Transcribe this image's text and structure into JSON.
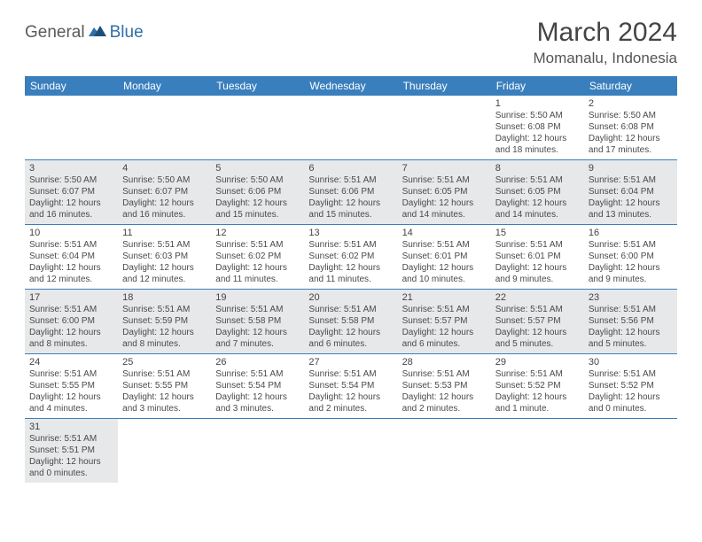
{
  "logo": {
    "part_a": "General",
    "part_b": "Blue"
  },
  "title": "March 2024",
  "location": "Momanalu, Indonesia",
  "colors": {
    "header_bg": "#3a7fbd",
    "header_text": "#ffffff",
    "shaded_bg": "#e7e8e9",
    "border": "#3a7fbd",
    "logo_a": "#5a5a5a",
    "logo_b": "#2f6fa8"
  },
  "day_headers": [
    "Sunday",
    "Monday",
    "Tuesday",
    "Wednesday",
    "Thursday",
    "Friday",
    "Saturday"
  ],
  "weeks": [
    [
      null,
      null,
      null,
      null,
      null,
      {
        "n": "1",
        "sr": "5:50 AM",
        "ss": "6:08 PM",
        "dl": "12 hours and 18 minutes."
      },
      {
        "n": "2",
        "sr": "5:50 AM",
        "ss": "6:08 PM",
        "dl": "12 hours and 17 minutes."
      }
    ],
    [
      {
        "n": "3",
        "sr": "5:50 AM",
        "ss": "6:07 PM",
        "dl": "12 hours and 16 minutes."
      },
      {
        "n": "4",
        "sr": "5:50 AM",
        "ss": "6:07 PM",
        "dl": "12 hours and 16 minutes."
      },
      {
        "n": "5",
        "sr": "5:50 AM",
        "ss": "6:06 PM",
        "dl": "12 hours and 15 minutes."
      },
      {
        "n": "6",
        "sr": "5:51 AM",
        "ss": "6:06 PM",
        "dl": "12 hours and 15 minutes."
      },
      {
        "n": "7",
        "sr": "5:51 AM",
        "ss": "6:05 PM",
        "dl": "12 hours and 14 minutes."
      },
      {
        "n": "8",
        "sr": "5:51 AM",
        "ss": "6:05 PM",
        "dl": "12 hours and 14 minutes."
      },
      {
        "n": "9",
        "sr": "5:51 AM",
        "ss": "6:04 PM",
        "dl": "12 hours and 13 minutes."
      }
    ],
    [
      {
        "n": "10",
        "sr": "5:51 AM",
        "ss": "6:04 PM",
        "dl": "12 hours and 12 minutes."
      },
      {
        "n": "11",
        "sr": "5:51 AM",
        "ss": "6:03 PM",
        "dl": "12 hours and 12 minutes."
      },
      {
        "n": "12",
        "sr": "5:51 AM",
        "ss": "6:02 PM",
        "dl": "12 hours and 11 minutes."
      },
      {
        "n": "13",
        "sr": "5:51 AM",
        "ss": "6:02 PM",
        "dl": "12 hours and 11 minutes."
      },
      {
        "n": "14",
        "sr": "5:51 AM",
        "ss": "6:01 PM",
        "dl": "12 hours and 10 minutes."
      },
      {
        "n": "15",
        "sr": "5:51 AM",
        "ss": "6:01 PM",
        "dl": "12 hours and 9 minutes."
      },
      {
        "n": "16",
        "sr": "5:51 AM",
        "ss": "6:00 PM",
        "dl": "12 hours and 9 minutes."
      }
    ],
    [
      {
        "n": "17",
        "sr": "5:51 AM",
        "ss": "6:00 PM",
        "dl": "12 hours and 8 minutes."
      },
      {
        "n": "18",
        "sr": "5:51 AM",
        "ss": "5:59 PM",
        "dl": "12 hours and 8 minutes."
      },
      {
        "n": "19",
        "sr": "5:51 AM",
        "ss": "5:58 PM",
        "dl": "12 hours and 7 minutes."
      },
      {
        "n": "20",
        "sr": "5:51 AM",
        "ss": "5:58 PM",
        "dl": "12 hours and 6 minutes."
      },
      {
        "n": "21",
        "sr": "5:51 AM",
        "ss": "5:57 PM",
        "dl": "12 hours and 6 minutes."
      },
      {
        "n": "22",
        "sr": "5:51 AM",
        "ss": "5:57 PM",
        "dl": "12 hours and 5 minutes."
      },
      {
        "n": "23",
        "sr": "5:51 AM",
        "ss": "5:56 PM",
        "dl": "12 hours and 5 minutes."
      }
    ],
    [
      {
        "n": "24",
        "sr": "5:51 AM",
        "ss": "5:55 PM",
        "dl": "12 hours and 4 minutes."
      },
      {
        "n": "25",
        "sr": "5:51 AM",
        "ss": "5:55 PM",
        "dl": "12 hours and 3 minutes."
      },
      {
        "n": "26",
        "sr": "5:51 AM",
        "ss": "5:54 PM",
        "dl": "12 hours and 3 minutes."
      },
      {
        "n": "27",
        "sr": "5:51 AM",
        "ss": "5:54 PM",
        "dl": "12 hours and 2 minutes."
      },
      {
        "n": "28",
        "sr": "5:51 AM",
        "ss": "5:53 PM",
        "dl": "12 hours and 2 minutes."
      },
      {
        "n": "29",
        "sr": "5:51 AM",
        "ss": "5:52 PM",
        "dl": "12 hours and 1 minute."
      },
      {
        "n": "30",
        "sr": "5:51 AM",
        "ss": "5:52 PM",
        "dl": "12 hours and 0 minutes."
      }
    ],
    [
      {
        "n": "31",
        "sr": "5:51 AM",
        "ss": "5:51 PM",
        "dl": "12 hours and 0 minutes."
      },
      null,
      null,
      null,
      null,
      null,
      null
    ]
  ],
  "labels": {
    "sunrise": "Sunrise:",
    "sunset": "Sunset:",
    "daylight": "Daylight:"
  }
}
